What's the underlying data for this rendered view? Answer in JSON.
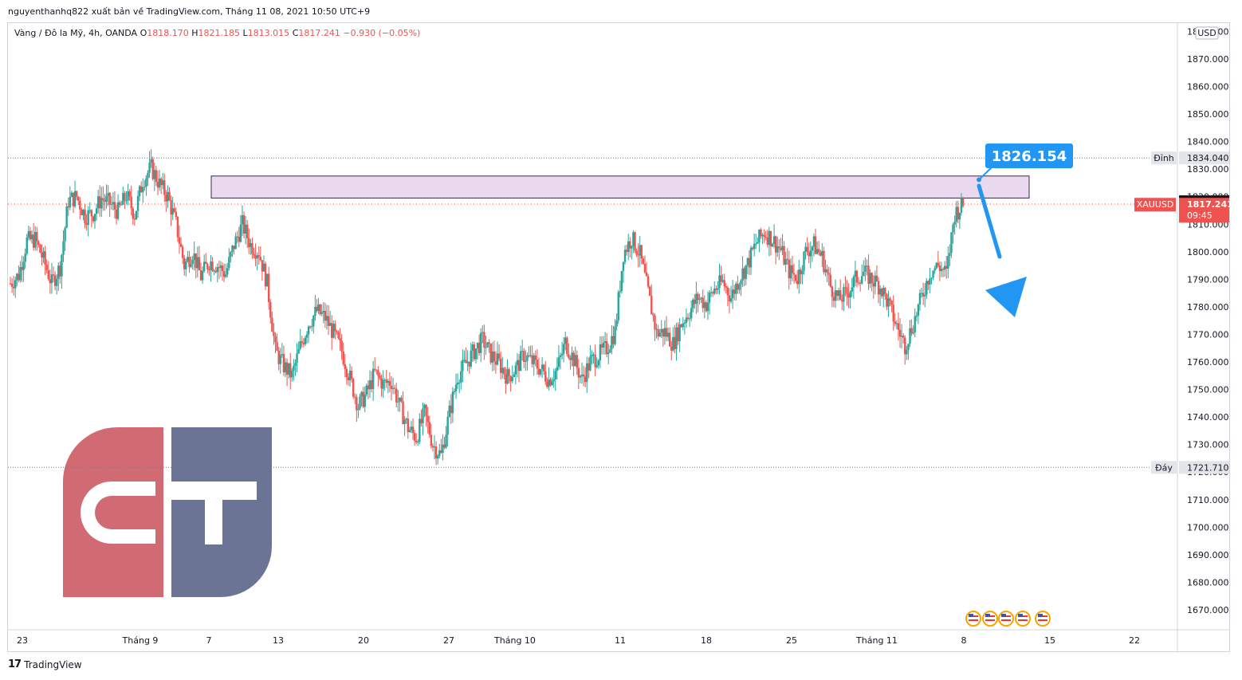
{
  "publisher_line": "nguyenthanhq822 xuất bản về TradingView.com, Tháng 11 08, 2021 10:50 UTC+9",
  "legend": {
    "symbol": "Vàng / Đô la Mỹ, 4h, OANDA",
    "o_label": "O",
    "o": "1818.170",
    "h_label": "H",
    "h": "1821.185",
    "l_label": "L",
    "l": "1813.015",
    "c_label": "C",
    "c": "1817.241",
    "change": "−0.930 (−0.05%)"
  },
  "currency": "USD",
  "footer": {
    "logo": "17",
    "brand": "TradingView"
  },
  "colors": {
    "up": "#26a69a",
    "down": "#ef5350",
    "zone": "#ead9ef",
    "callout": "#2196f3",
    "watermark_red": "#d26a74",
    "watermark_blue": "#6b7494"
  },
  "icons": [
    "tradingview-logo-icon",
    "arrow-down-icon",
    "us-flag-event-icon"
  ],
  "chart_data": {
    "type": "candlestick",
    "symbol": "XAUUSD",
    "timeframe": "4h",
    "y_ticks": [
      "1670.000",
      "1680.000",
      "1690.000",
      "1700.000",
      "1710.000",
      "1720.000",
      "1730.000",
      "1740.000",
      "1750.000",
      "1760.000",
      "1770.000",
      "1780.000",
      "1790.000",
      "1800.000",
      "1810.000",
      "1820.000",
      "1830.000",
      "1840.000",
      "1850.000",
      "1860.000",
      "1870.000",
      "1880.000"
    ],
    "ylim": [
      1662,
      1890
    ],
    "x_ticks": [
      "23",
      "Tháng 9",
      "7",
      "13",
      "20",
      "27",
      "Tháng 10",
      "11",
      "18",
      "25",
      "Tháng 11",
      "8",
      "15",
      "22"
    ],
    "series_path": [
      [
        1784,
        1793
      ],
      [
        1785,
        1798
      ],
      [
        1800,
        1808
      ],
      [
        1803,
        1806
      ],
      [
        1795,
        1799
      ],
      [
        1787,
        1790
      ],
      [
        1790,
        1799
      ],
      [
        1815,
        1822
      ],
      [
        1817,
        1823
      ],
      [
        1812,
        1814
      ],
      [
        1808,
        1820
      ],
      [
        1816,
        1823
      ],
      [
        1815,
        1820
      ],
      [
        1812,
        1817
      ],
      [
        1818,
        1823
      ],
      [
        1812,
        1815
      ],
      [
        1820,
        1832
      ],
      [
        1828,
        1833
      ],
      [
        1823,
        1826
      ],
      [
        1818,
        1822
      ],
      [
        1808,
        1812
      ],
      [
        1790,
        1800
      ],
      [
        1795,
        1805
      ],
      [
        1787,
        1795
      ],
      [
        1793,
        1800
      ],
      [
        1792,
        1798
      ],
      [
        1788,
        1796
      ],
      [
        1800,
        1805
      ],
      [
        1808,
        1812
      ],
      [
        1800,
        1805
      ],
      [
        1795,
        1805
      ],
      [
        1785,
        1792
      ],
      [
        1760,
        1768
      ],
      [
        1755,
        1762
      ],
      [
        1750,
        1760
      ],
      [
        1762,
        1769
      ],
      [
        1770,
        1778
      ],
      [
        1775,
        1782
      ],
      [
        1772,
        1780
      ],
      [
        1766,
        1775
      ],
      [
        1760,
        1768
      ],
      [
        1750,
        1758
      ],
      [
        1740,
        1748
      ],
      [
        1745,
        1752
      ],
      [
        1752,
        1760
      ],
      [
        1748,
        1756
      ],
      [
        1750,
        1756
      ],
      [
        1740,
        1748
      ],
      [
        1732,
        1740
      ],
      [
        1728,
        1737
      ],
      [
        1738,
        1745
      ],
      [
        1725,
        1735
      ],
      [
        1722,
        1730
      ],
      [
        1738,
        1745
      ],
      [
        1752,
        1758
      ],
      [
        1757,
        1762
      ],
      [
        1760,
        1768
      ],
      [
        1766,
        1770
      ],
      [
        1760,
        1765
      ],
      [
        1757,
        1762
      ],
      [
        1752,
        1757
      ],
      [
        1755,
        1760
      ],
      [
        1760,
        1765
      ],
      [
        1758,
        1762
      ],
      [
        1755,
        1760
      ],
      [
        1750,
        1757
      ],
      [
        1755,
        1760
      ],
      [
        1762,
        1772
      ],
      [
        1758,
        1764
      ],
      [
        1750,
        1757
      ],
      [
        1758,
        1762
      ],
      [
        1760,
        1765
      ],
      [
        1763,
        1767
      ],
      [
        1767,
        1775
      ],
      [
        1797,
        1802
      ],
      [
        1803,
        1807
      ],
      [
        1798,
        1800
      ],
      [
        1780,
        1790
      ],
      [
        1768,
        1773
      ],
      [
        1768,
        1774
      ],
      [
        1763,
        1770
      ],
      [
        1770,
        1778
      ],
      [
        1775,
        1782
      ],
      [
        1780,
        1787
      ],
      [
        1778,
        1784
      ],
      [
        1783,
        1790
      ],
      [
        1787,
        1791
      ],
      [
        1780,
        1787
      ],
      [
        1788,
        1793
      ],
      [
        1793,
        1798
      ],
      [
        1800,
        1806
      ],
      [
        1806,
        1808
      ],
      [
        1803,
        1806
      ],
      [
        1798,
        1803
      ],
      [
        1790,
        1796
      ],
      [
        1788,
        1793
      ],
      [
        1797,
        1803
      ],
      [
        1800,
        1805
      ],
      [
        1796,
        1800
      ],
      [
        1785,
        1790
      ],
      [
        1780,
        1785
      ],
      [
        1782,
        1788
      ],
      [
        1787,
        1793
      ],
      [
        1790,
        1795
      ],
      [
        1788,
        1792
      ],
      [
        1785,
        1790
      ],
      [
        1778,
        1784
      ],
      [
        1770,
        1776
      ],
      [
        1762,
        1770
      ],
      [
        1772,
        1776
      ],
      [
        1777,
        1790
      ],
      [
        1790,
        1795
      ],
      [
        1793,
        1797
      ],
      [
        1790,
        1794
      ],
      [
        1810,
        1818
      ],
      [
        1816,
        1818
      ]
    ],
    "resistance_zone": [
      1819.5,
      1827.5
    ],
    "reference_lines": [
      {
        "label": "Đỉnh",
        "value": "1834.040"
      },
      {
        "label": "Đáy",
        "value": "1721.710"
      }
    ],
    "callout": "1826.154",
    "last_price": {
      "value": "1818.170"
    },
    "current_price": {
      "symbol": "XAUUSD",
      "value": "1817.241",
      "countdown": "09:45"
    }
  }
}
